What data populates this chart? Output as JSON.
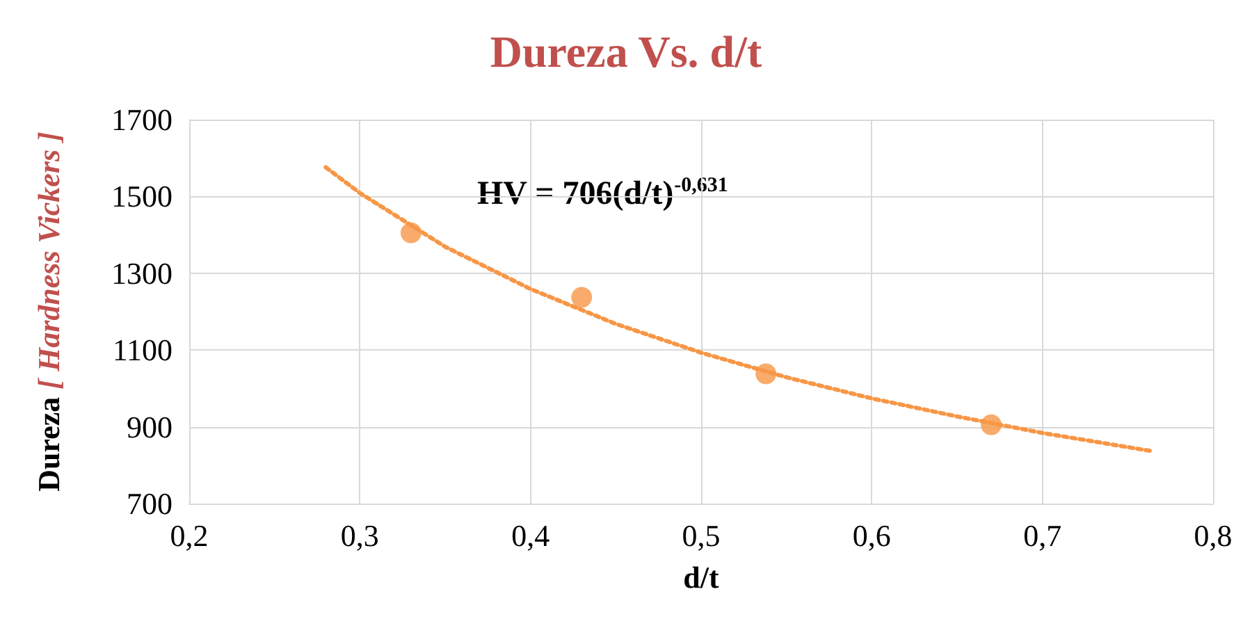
{
  "chart_data": {
    "type": "scatter",
    "title": "Dureza Vs. d/t",
    "xlabel": "d/t",
    "ylabel": "Dureza [ Hardness Vickers ]",
    "annotations": [
      "HV = 706(d/t)$^{-0,631}$"
    ],
    "xlim": [
      0.2,
      0.8
    ],
    "xticks": [
      {
        "value": 0.2,
        "label": "0,2"
      },
      {
        "value": 0.3,
        "label": "0,3"
      },
      {
        "value": 0.4,
        "label": "0,4"
      },
      {
        "value": 0.5,
        "label": "0,5"
      },
      {
        "value": 0.6,
        "label": "0,6"
      },
      {
        "value": 0.7,
        "label": "0,7"
      },
      {
        "value": 0.8,
        "label": "0,8"
      }
    ],
    "ylim": [
      700,
      1700
    ],
    "yticks": [
      700,
      900,
      1100,
      1300,
      1500,
      1700
    ],
    "grid": true,
    "series": [
      {
        "color": "#f79646",
        "marker": "circle",
        "x": [
          0.33,
          0.43,
          0.538,
          0.67
        ],
        "values": [
          1405,
          1237,
          1038,
          905
        ]
      },
      {
        "type": "line",
        "color": "#f79646",
        "marker": "none",
        "line_style": "dotted",
        "x": [
          0.28,
          0.3,
          0.35,
          0.4,
          0.45,
          0.5,
          0.55,
          0.6,
          0.65,
          0.7,
          0.765
        ],
        "values": [
          1576,
          1509,
          1369,
          1259,
          1168,
          1093,
          1029,
          974,
          927,
          884,
          836
        ]
      }
    ]
  }
}
